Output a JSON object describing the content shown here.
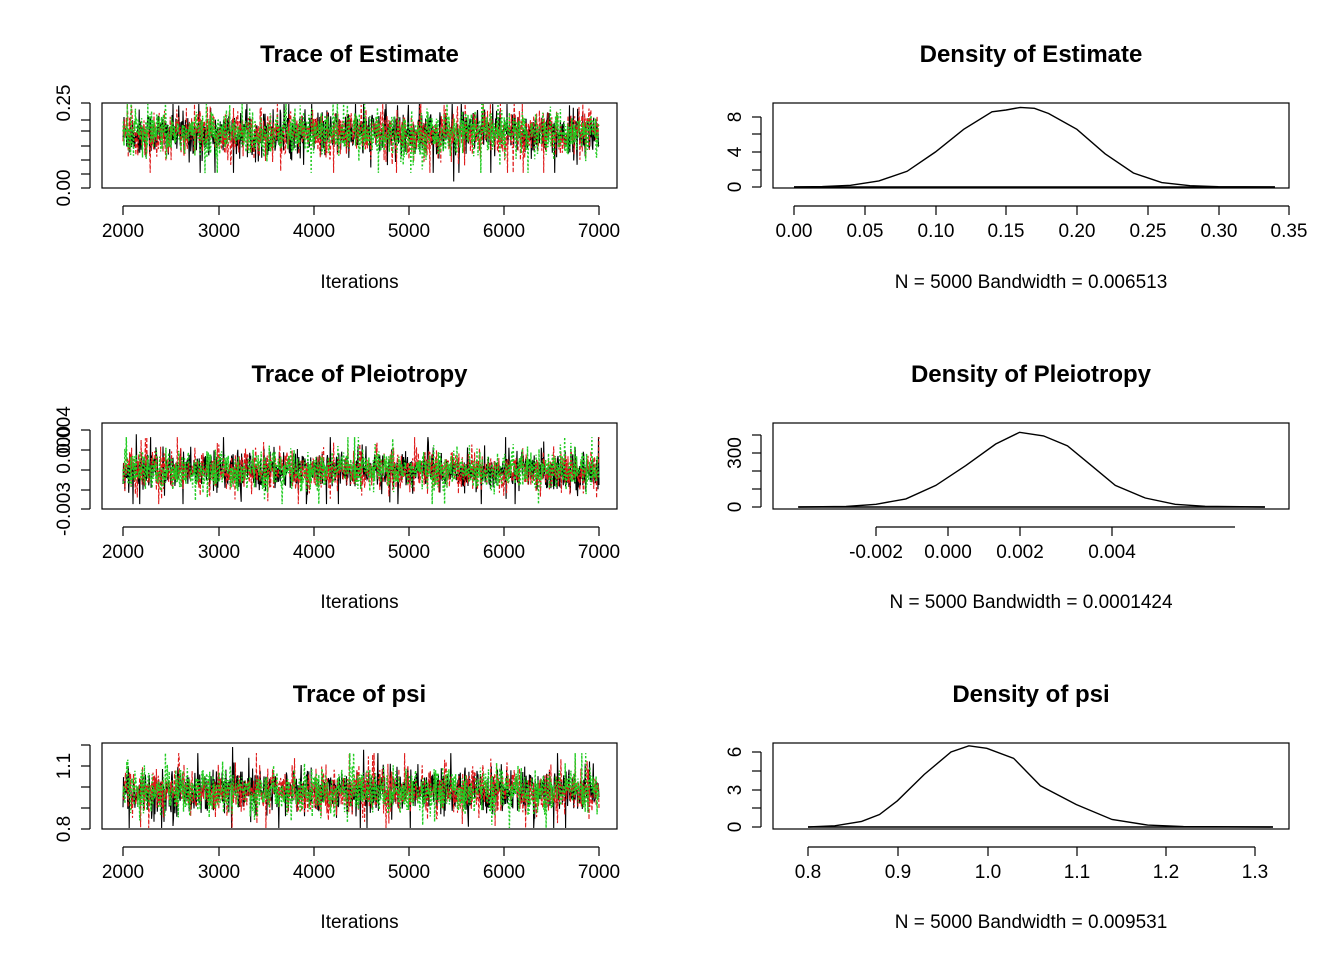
{
  "chart_data": [
    {
      "type": "line",
      "title": "Trace of Estimate",
      "xlabel": "Iterations",
      "xlim": [
        2000,
        7000
      ],
      "ylim": [
        0.0,
        0.25
      ],
      "x_ticks": [
        "2000",
        "3000",
        "4000",
        "5000",
        "6000",
        "7000"
      ],
      "y_ticks": [
        "0.00",
        "0.25"
      ],
      "trace": {
        "center": 0.16,
        "spread": 0.035,
        "min": 0.0,
        "max": 0.28
      },
      "series": [
        {
          "color": "#000000"
        },
        {
          "color": "#df1a1a"
        },
        {
          "color": "#22cc22"
        }
      ]
    },
    {
      "type": "area",
      "title": "Density of Estimate",
      "xlabel": "N = 5000   Bandwidth = 0.006513",
      "xlim": [
        0.0,
        0.35
      ],
      "ylim": [
        0,
        9
      ],
      "x_ticks": [
        "0.00",
        "0.05",
        "0.10",
        "0.15",
        "0.20",
        "0.25",
        "0.30",
        "0.35"
      ],
      "y_ticks": [
        "0",
        "4",
        "8"
      ],
      "x": [
        0.0,
        0.02,
        0.04,
        0.06,
        0.08,
        0.1,
        0.12,
        0.14,
        0.15,
        0.16,
        0.17,
        0.18,
        0.2,
        0.22,
        0.24,
        0.26,
        0.28,
        0.3,
        0.34
      ],
      "y": [
        0.0,
        0.05,
        0.2,
        0.7,
        1.8,
        4.0,
        6.6,
        8.6,
        8.8,
        9.1,
        9.0,
        8.4,
        6.6,
        3.8,
        1.6,
        0.5,
        0.15,
        0.04,
        0.0
      ]
    },
    {
      "type": "line",
      "title": "Trace of Pleiotropy",
      "xlabel": "Iterations",
      "xlim": [
        2000,
        7000
      ],
      "ylim": [
        -0.003,
        0.004
      ],
      "x_ticks": [
        "2000",
        "3000",
        "4000",
        "5000",
        "6000",
        "7000"
      ],
      "y_ticks": [
        "-0.003",
        "0.000",
        "0.004"
      ],
      "trace": {
        "center": 0.0004,
        "spread": 0.0009,
        "min": -0.0037,
        "max": 0.0042
      },
      "series": [
        {
          "color": "#000000"
        },
        {
          "color": "#df1a1a"
        },
        {
          "color": "#22cc22"
        }
      ]
    },
    {
      "type": "area",
      "title": "Density of Pleiotropy",
      "xlabel": "N = 5000   Bandwidth = 0.0001424",
      "xlim": [
        -0.0034,
        0.0046
      ],
      "ylim": [
        0,
        420
      ],
      "x_ticks": [
        "-0.002",
        "0.000",
        "0.002",
        "0.004"
      ],
      "y_ticks": [
        "0",
        "300"
      ],
      "x": [
        -0.0033,
        -0.0025,
        -0.002,
        -0.0015,
        -0.001,
        -0.0005,
        0.0,
        0.0004,
        0.0008,
        0.0012,
        0.0016,
        0.002,
        0.0025,
        0.003,
        0.0035,
        0.0045
      ],
      "y": [
        0,
        3,
        15,
        45,
        120,
        230,
        350,
        415,
        395,
        340,
        230,
        120,
        50,
        15,
        4,
        0
      ]
    },
    {
      "type": "line",
      "title": "Trace of psi",
      "xlabel": "Iterations",
      "xlim": [
        2000,
        7000
      ],
      "ylim": [
        0.8,
        1.1
      ],
      "x_ticks": [
        "2000",
        "3000",
        "4000",
        "5000",
        "6000",
        "7000"
      ],
      "y_ticks": [
        "0.8",
        "1.1"
      ],
      "trace": {
        "center": 0.98,
        "spread": 0.055,
        "min": 0.8,
        "max": 1.25
      },
      "series": [
        {
          "color": "#000000"
        },
        {
          "color": "#df1a1a"
        },
        {
          "color": "#22cc22"
        }
      ]
    },
    {
      "type": "area",
      "title": "Density of psi",
      "xlabel": "N = 5000   Bandwidth = 0.009531",
      "xlim": [
        0.78,
        1.32
      ],
      "ylim": [
        0,
        6.5
      ],
      "x_ticks": [
        "0.8",
        "0.9",
        "1.0",
        "1.1",
        "1.2",
        "1.3"
      ],
      "y_ticks": [
        "0",
        "3",
        "6"
      ],
      "x": [
        0.8,
        0.83,
        0.86,
        0.88,
        0.9,
        0.93,
        0.96,
        0.98,
        1.0,
        1.03,
        1.06,
        1.1,
        1.14,
        1.18,
        1.22,
        1.32
      ],
      "y": [
        0.0,
        0.1,
        0.45,
        1.0,
        2.1,
        4.2,
        6.0,
        6.5,
        6.3,
        5.5,
        3.3,
        1.8,
        0.6,
        0.15,
        0.03,
        0.0
      ]
    }
  ]
}
